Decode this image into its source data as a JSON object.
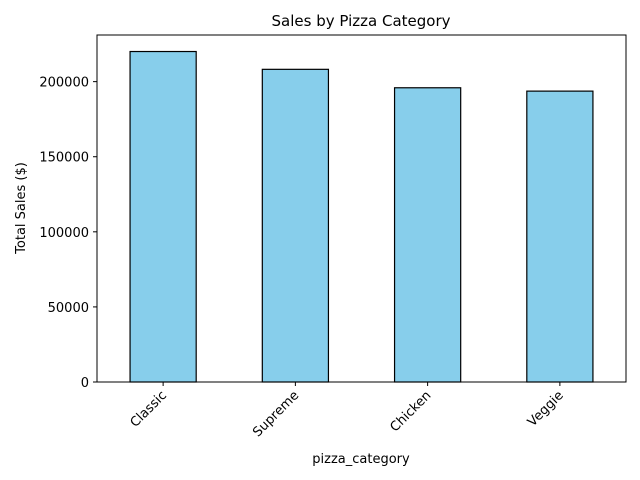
{
  "chart_data": {
    "type": "bar",
    "title": "Sales by Pizza Category",
    "xlabel": "pizza_category",
    "ylabel": "Total Sales ($)",
    "categories": [
      "Classic",
      "Supreme",
      "Chicken",
      "Veggie"
    ],
    "values": [
      220053,
      208197,
      195920,
      193690
    ],
    "ylim": [
      0,
      231056
    ],
    "yticks": [
      0,
      50000,
      100000,
      150000,
      200000
    ],
    "ytick_labels": [
      "0",
      "50000",
      "100000",
      "150000",
      "200000"
    ],
    "grid": false,
    "legend": "none",
    "bar_color": "#87ceeb",
    "edge_color": "#000000"
  }
}
